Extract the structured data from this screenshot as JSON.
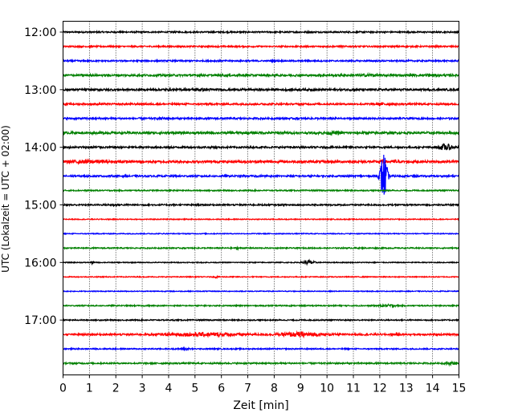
{
  "chart_data": {
    "type": "line",
    "title": "",
    "xlabel": "Zeit  [min]",
    "ylabel": "UTC (Lokalzeit = UTC + 02:00)",
    "xlim": [
      0,
      15
    ],
    "x_ticks": [
      "0",
      "1",
      "2",
      "3",
      "4",
      "5",
      "6",
      "7",
      "8",
      "9",
      "10",
      "11",
      "12",
      "13",
      "14",
      "15"
    ],
    "y_ticks": [
      "12:00",
      "13:00",
      "14:00",
      "15:00",
      "16:00",
      "17:00"
    ],
    "grid": "vertical dotted",
    "colors": [
      "#000000",
      "#ff0000",
      "#0000ff",
      "#008000"
    ],
    "series": [
      {
        "start": "12:00",
        "color": "#000000",
        "amplitude": 0.1,
        "events": []
      },
      {
        "start": "12:15",
        "color": "#ff0000",
        "amplitude": 0.1,
        "events": []
      },
      {
        "start": "12:30",
        "color": "#0000ff",
        "amplitude": 0.1,
        "events": []
      },
      {
        "start": "12:45",
        "color": "#008000",
        "amplitude": 0.14,
        "events": [
          {
            "t": 11.6,
            "amp": 0.25,
            "dur": 0.4
          },
          {
            "t": 13.9,
            "amp": 0.22,
            "dur": 0.6
          }
        ]
      },
      {
        "start": "13:00",
        "color": "#000000",
        "amplitude": 0.14,
        "events": [
          {
            "t": 5.2,
            "amp": 0.22,
            "dur": 0.8
          }
        ]
      },
      {
        "start": "13:15",
        "color": "#ff0000",
        "amplitude": 0.12,
        "events": [
          {
            "t": 12.1,
            "amp": 0.22,
            "dur": 0.5
          }
        ]
      },
      {
        "start": "13:30",
        "color": "#0000ff",
        "amplitude": 0.12,
        "events": [
          {
            "t": 3.8,
            "amp": 0.2,
            "dur": 0.4
          }
        ]
      },
      {
        "start": "13:45",
        "color": "#008000",
        "amplitude": 0.15,
        "events": [
          {
            "t": 10.2,
            "amp": 0.24,
            "dur": 0.9
          }
        ]
      },
      {
        "start": "14:00",
        "color": "#000000",
        "amplitude": 0.12,
        "events": [
          {
            "t": 14.5,
            "amp": 0.5,
            "dur": 0.5
          },
          {
            "t": 1.2,
            "amp": 0.22,
            "dur": 0.5
          }
        ]
      },
      {
        "start": "14:15",
        "color": "#ff0000",
        "amplitude": 0.16,
        "events": [
          {
            "t": 1.0,
            "amp": 0.28,
            "dur": 1.6
          },
          {
            "t": 12.1,
            "amp": 0.3,
            "dur": 0.3
          },
          {
            "t": 12.6,
            "amp": 0.28,
            "dur": 0.2
          }
        ]
      },
      {
        "start": "14:30",
        "color": "#0000ff",
        "amplitude": 0.12,
        "events": [
          {
            "t": 12.15,
            "amp": 3.5,
            "dur": 0.25
          }
        ]
      },
      {
        "start": "14:45",
        "color": "#008000",
        "amplitude": 0.08,
        "events": []
      },
      {
        "start": "15:00",
        "color": "#000000",
        "amplitude": 0.1,
        "events": [
          {
            "t": 2.0,
            "amp": 0.18,
            "dur": 0.5
          }
        ]
      },
      {
        "start": "15:15",
        "color": "#ff0000",
        "amplitude": 0.06,
        "events": []
      },
      {
        "start": "15:30",
        "color": "#0000ff",
        "amplitude": 0.06,
        "events": []
      },
      {
        "start": "15:45",
        "color": "#008000",
        "amplitude": 0.08,
        "events": [
          {
            "t": 6.6,
            "amp": 0.22,
            "dur": 0.1
          }
        ]
      },
      {
        "start": "16:00",
        "color": "#000000",
        "amplitude": 0.06,
        "events": [
          {
            "t": 1.1,
            "amp": 0.25,
            "dur": 0.1
          },
          {
            "t": 9.3,
            "amp": 0.35,
            "dur": 0.4
          }
        ]
      },
      {
        "start": "16:15",
        "color": "#ff0000",
        "amplitude": 0.06,
        "events": [
          {
            "t": 5.8,
            "amp": 0.2,
            "dur": 0.08
          }
        ]
      },
      {
        "start": "16:30",
        "color": "#0000ff",
        "amplitude": 0.06,
        "events": []
      },
      {
        "start": "16:45",
        "color": "#008000",
        "amplitude": 0.08,
        "events": [
          {
            "t": 12.3,
            "amp": 0.2,
            "dur": 0.6
          }
        ]
      },
      {
        "start": "17:00",
        "color": "#000000",
        "amplitude": 0.08,
        "events": []
      },
      {
        "start": "17:15",
        "color": "#ff0000",
        "amplitude": 0.12,
        "events": [
          {
            "t": 5.4,
            "amp": 0.3,
            "dur": 2.5
          },
          {
            "t": 9.0,
            "amp": 0.35,
            "dur": 1.6
          }
        ]
      },
      {
        "start": "17:30",
        "color": "#0000ff",
        "amplitude": 0.08,
        "events": [
          {
            "t": 4.6,
            "amp": 0.22,
            "dur": 0.4
          }
        ]
      },
      {
        "start": "17:45",
        "color": "#008000",
        "amplitude": 0.1,
        "events": [
          {
            "t": 14.7,
            "amp": 0.25,
            "dur": 0.4
          }
        ]
      }
    ]
  }
}
